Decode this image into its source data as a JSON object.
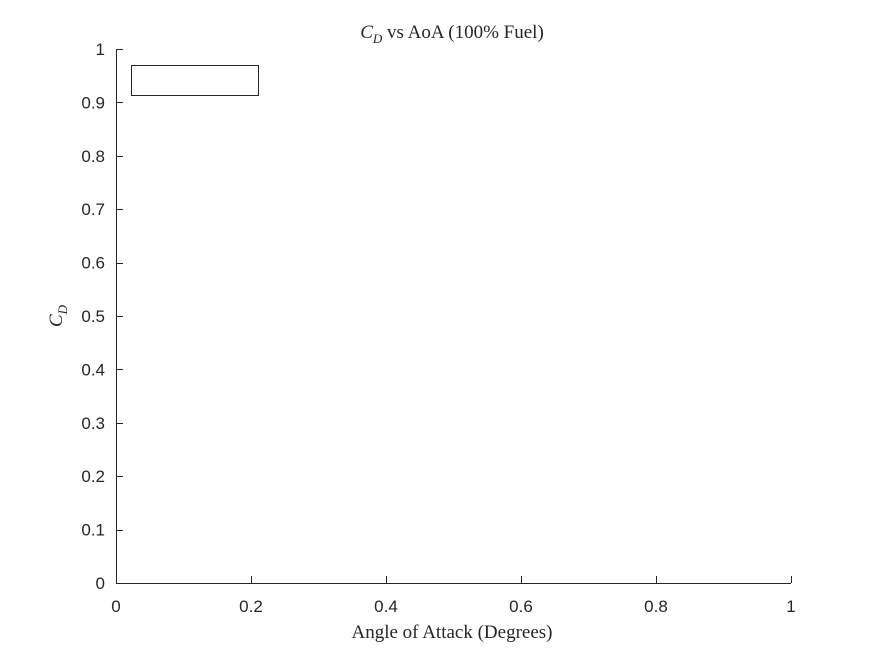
{
  "chart_data": {
    "type": "line",
    "title": {
      "sym_main": "C",
      "sym_sub": "D",
      "rest": " vs AoA (100% Fuel)"
    },
    "xlabel": "Angle of Attack (Degrees)",
    "ylabel": {
      "sym_main": "C",
      "sym_sub": "D"
    },
    "xlim": [
      0,
      1
    ],
    "ylim": [
      0,
      1
    ],
    "xticks": [
      0,
      0.2,
      0.4,
      0.6,
      0.8,
      1
    ],
    "xtick_labels": [
      "0",
      "0.2",
      "0.4",
      "0.6",
      "0.8",
      "1"
    ],
    "yticks": [
      0,
      0.1,
      0.2,
      0.3,
      0.4,
      0.5,
      0.6,
      0.7,
      0.8,
      0.9,
      1
    ],
    "ytick_labels": [
      "0",
      "0.1",
      "0.2",
      "0.3",
      "0.4",
      "0.5",
      "0.6",
      "0.7",
      "0.8",
      "0.9",
      "1"
    ],
    "series": [],
    "legend": {
      "placement": "top-left",
      "entries": []
    },
    "grid": false,
    "box": false,
    "colors": {
      "axis": "#262626",
      "background": "#ffffff"
    }
  }
}
